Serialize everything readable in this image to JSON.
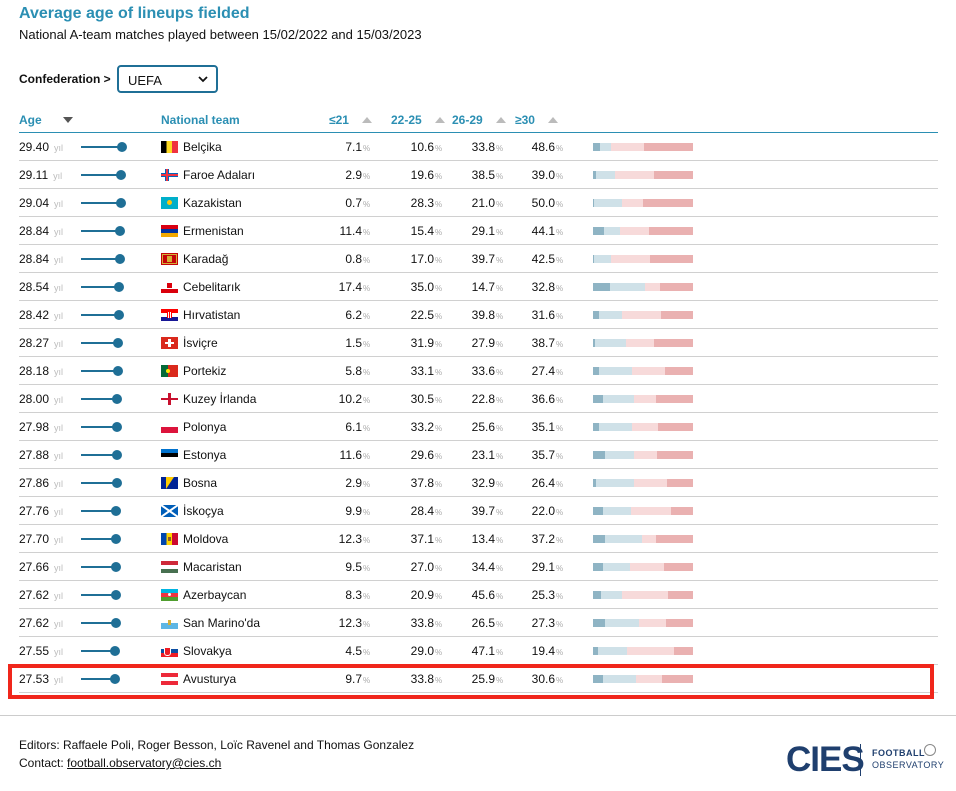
{
  "header": {
    "title": "Average age of lineups fielded",
    "subtitle": "National A-team matches played between 15/02/2022 and 15/03/2023"
  },
  "filter": {
    "label": "Confederation >",
    "selected": "UEFA"
  },
  "table": {
    "columns": {
      "age": "Age",
      "team": "National team",
      "u21": "≤21",
      "a2225": "22-25",
      "a2629": "26-29",
      "o30": "≥30"
    },
    "age_unit": "yıl",
    "pct_unit": "%",
    "highlighted_index": 19,
    "rows": [
      {
        "age": "29.40",
        "slider": 0.82,
        "team": "Belçika",
        "flag": "be",
        "u21": "7.1",
        "a2225": "10.6",
        "a2629": "33.8",
        "o30": "48.6"
      },
      {
        "age": "29.11",
        "slider": 0.8,
        "team": "Faroe Adaları",
        "flag": "fo",
        "u21": "2.9",
        "a2225": "19.6",
        "a2629": "38.5",
        "o30": "39.0"
      },
      {
        "age": "29.04",
        "slider": 0.79,
        "team": "Kazakistan",
        "flag": "kz",
        "u21": "0.7",
        "a2225": "28.3",
        "a2629": "21.0",
        "o30": "50.0"
      },
      {
        "age": "28.84",
        "slider": 0.78,
        "team": "Ermenistan",
        "flag": "am",
        "u21": "11.4",
        "a2225": "15.4",
        "a2629": "29.1",
        "o30": "44.1"
      },
      {
        "age": "28.84",
        "slider": 0.78,
        "team": "Karadağ",
        "flag": "me",
        "u21": "0.8",
        "a2225": "17.0",
        "a2629": "39.7",
        "o30": "42.5"
      },
      {
        "age": "28.54",
        "slider": 0.76,
        "team": "Cebelitarık",
        "flag": "gi",
        "u21": "17.4",
        "a2225": "35.0",
        "a2629": "14.7",
        "o30": "32.8"
      },
      {
        "age": "28.42",
        "slider": 0.75,
        "team": "Hırvatistan",
        "flag": "hr",
        "u21": "6.2",
        "a2225": "22.5",
        "a2629": "39.8",
        "o30": "31.6"
      },
      {
        "age": "28.27",
        "slider": 0.74,
        "team": "İsviçre",
        "flag": "ch",
        "u21": "1.5",
        "a2225": "31.9",
        "a2629": "27.9",
        "o30": "38.7"
      },
      {
        "age": "28.18",
        "slider": 0.73,
        "team": "Portekiz",
        "flag": "pt",
        "u21": "5.8",
        "a2225": "33.1",
        "a2629": "33.6",
        "o30": "27.4"
      },
      {
        "age": "28.00",
        "slider": 0.72,
        "team": "Kuzey İrlanda",
        "flag": "nir",
        "u21": "10.2",
        "a2225": "30.5",
        "a2629": "22.8",
        "o30": "36.6"
      },
      {
        "age": "27.98",
        "slider": 0.72,
        "team": "Polonya",
        "flag": "pl",
        "u21": "6.1",
        "a2225": "33.2",
        "a2629": "25.6",
        "o30": "35.1"
      },
      {
        "age": "27.88",
        "slider": 0.71,
        "team": "Estonya",
        "flag": "ee",
        "u21": "11.6",
        "a2225": "29.6",
        "a2629": "23.1",
        "o30": "35.7"
      },
      {
        "age": "27.86",
        "slider": 0.71,
        "team": "Bosna",
        "flag": "ba",
        "u21": "2.9",
        "a2225": "37.8",
        "a2629": "32.9",
        "o30": "26.4"
      },
      {
        "age": "27.76",
        "slider": 0.7,
        "team": "İskoçya",
        "flag": "sco",
        "u21": "9.9",
        "a2225": "28.4",
        "a2629": "39.7",
        "o30": "22.0"
      },
      {
        "age": "27.70",
        "slider": 0.7,
        "team": "Moldova",
        "flag": "md",
        "u21": "12.3",
        "a2225": "37.1",
        "a2629": "13.4",
        "o30": "37.2"
      },
      {
        "age": "27.66",
        "slider": 0.69,
        "team": "Macaristan",
        "flag": "hu",
        "u21": "9.5",
        "a2225": "27.0",
        "a2629": "34.4",
        "o30": "29.1"
      },
      {
        "age": "27.62",
        "slider": 0.69,
        "team": "Azerbaycan",
        "flag": "az",
        "u21": "8.3",
        "a2225": "20.9",
        "a2629": "45.6",
        "o30": "25.3"
      },
      {
        "age": "27.62",
        "slider": 0.69,
        "team": "San Marino'da",
        "flag": "sm",
        "u21": "12.3",
        "a2225": "33.8",
        "a2629": "26.5",
        "o30": "27.3"
      },
      {
        "age": "27.55",
        "slider": 0.68,
        "team": "Slovakya",
        "flag": "sk",
        "u21": "4.5",
        "a2225": "29.0",
        "a2629": "47.1",
        "o30": "19.4"
      },
      {
        "age": "27.53",
        "slider": 0.68,
        "team": "Avusturya",
        "flag": "at",
        "u21": "9.7",
        "a2225": "33.8",
        "a2629": "25.9",
        "o30": "30.6"
      }
    ]
  },
  "colors": {
    "accent": "#2b8fb3",
    "slider": "#1f6f96",
    "highlight_border": "#f0261b",
    "bar_u21": "#8fb4c4",
    "bar_2225": "#cfe1e8",
    "bar_2629": "#f7dada",
    "bar_o30": "#eab1b1"
  },
  "footer": {
    "editors": "Editors: Raffaele Poli, Roger Besson, Loïc Ravenel and Thomas Gonzalez",
    "contact_label": "Contact:",
    "contact_email": "football.observatory@cies.ch",
    "logo_text": "CIES",
    "logo_line1": "FOOTBALL",
    "logo_line2": "OBSERVATORY"
  }
}
